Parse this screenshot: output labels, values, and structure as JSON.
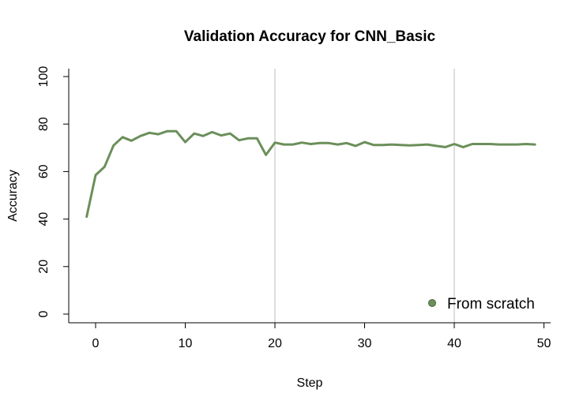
{
  "chart_data": {
    "type": "line",
    "title": "Validation Accuracy for CNN_Basic",
    "xlabel": "Step",
    "ylabel": "Accuracy",
    "xlim": [
      -1,
      50
    ],
    "ylim": [
      0,
      100
    ],
    "xticks": [
      0,
      10,
      20,
      30,
      40,
      50
    ],
    "yticks": [
      0,
      20,
      40,
      60,
      80,
      100
    ],
    "vlines": [
      20,
      40
    ],
    "grid": false,
    "legend_position": "bottom-right",
    "colors": {
      "series": "#6b8f5a",
      "vline": "#c8c8c8",
      "axis": "#000000"
    },
    "series": [
      {
        "name": "From scratch",
        "x": [
          -1,
          0,
          1,
          2,
          3,
          4,
          5,
          6,
          7,
          8,
          9,
          10,
          11,
          12,
          13,
          14,
          15,
          16,
          17,
          18,
          19,
          20,
          21,
          22,
          23,
          24,
          25,
          26,
          27,
          28,
          29,
          30,
          31,
          32,
          33,
          34,
          35,
          36,
          37,
          38,
          39,
          40,
          41,
          42,
          43,
          44,
          45,
          46,
          47,
          48,
          49
        ],
        "values": [
          41,
          58.5,
          62,
          71,
          74.5,
          73,
          75,
          76.3,
          75.7,
          77,
          77,
          72.4,
          76,
          75,
          76.6,
          75.2,
          76,
          73.2,
          74,
          74,
          67,
          72.2,
          71.4,
          71.4,
          72.2,
          71.6,
          72,
          72,
          71.4,
          72,
          70.8,
          72.4,
          71.2,
          71.2,
          71.4,
          71.2,
          71,
          71.2,
          71.4,
          70.8,
          70.3,
          71.6,
          70.3,
          71.6,
          71.6,
          71.6,
          71.4,
          71.4,
          71.4,
          71.6,
          71.4
        ]
      }
    ]
  }
}
